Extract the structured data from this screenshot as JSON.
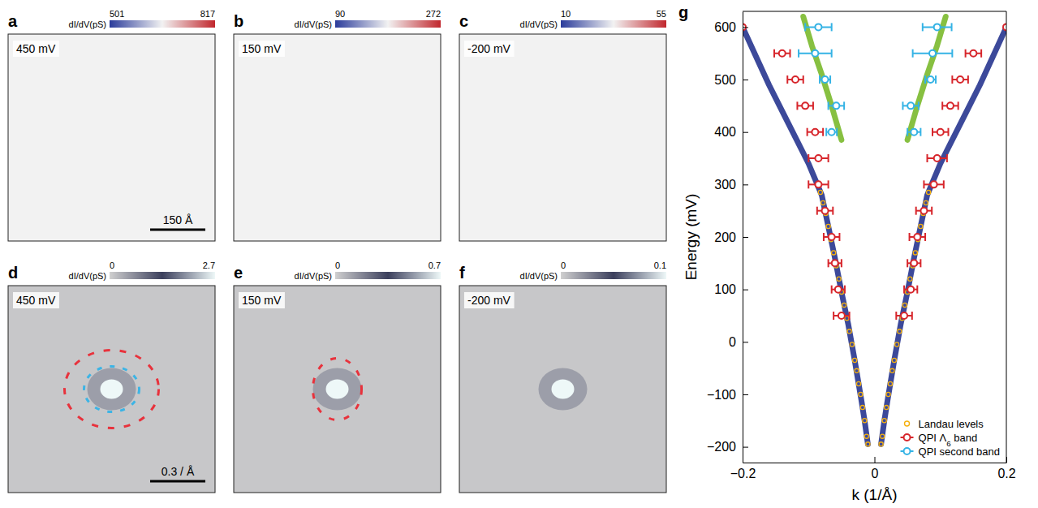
{
  "chart_data": [
    {
      "type": "image",
      "panel": "a",
      "label": "450 mV",
      "colorbar_label": "dI/dV(pS)",
      "colorbar_range": [
        501,
        817
      ],
      "colorbar_ticks": [
        501,
        817
      ],
      "colors": [
        "#2b3c9b",
        "#f2f2f2",
        "#c1272d"
      ],
      "scale_bar": "150 Å"
    },
    {
      "type": "image",
      "panel": "b",
      "label": "150 mV",
      "colorbar_label": "dI/dV(pS)",
      "colorbar_range": [
        90,
        272
      ],
      "colorbar_ticks": [
        90,
        272
      ],
      "colors": [
        "#2b3c9b",
        "#f2f2f2",
        "#c1272d"
      ]
    },
    {
      "type": "image",
      "panel": "c",
      "label": "-200 mV",
      "colorbar_label": "dI/dV(pS)",
      "colorbar_range": [
        10,
        55
      ],
      "colorbar_ticks": [
        10,
        55
      ],
      "colors": [
        "#2b3c9b",
        "#f2f2f2",
        "#c1272d"
      ]
    },
    {
      "type": "image",
      "panel": "d",
      "label": "450 mV",
      "colorbar_label": "dI/dV(pS)",
      "colorbar_range": [
        0,
        2.7
      ],
      "colorbar_ticks": [
        0,
        2.7
      ],
      "colors": [
        "#d0d0d0",
        "#3b3f5c",
        "#eef8f8"
      ],
      "scale_bar": "0.3 / Å"
    },
    {
      "type": "image",
      "panel": "e",
      "label": "150 mV",
      "colorbar_label": "dI/dV(pS)",
      "colorbar_range": [
        0,
        0.7
      ],
      "colorbar_ticks": [
        0,
        0.7
      ],
      "colors": [
        "#d0d0d0",
        "#3b3f5c",
        "#eef8f8"
      ]
    },
    {
      "type": "image",
      "panel": "f",
      "label": "-200 mV",
      "colorbar_label": "dI/dV(pS)",
      "colorbar_range": [
        0,
        0.1
      ],
      "colorbar_ticks": [
        0,
        0.1
      ],
      "colors": [
        "#d0d0d0",
        "#3b3f5c",
        "#eef8f8"
      ]
    },
    {
      "type": "line",
      "panel": "g",
      "x_label": "k (1/Å)",
      "y_label": "Energy (mV)",
      "xlim": [
        -0.2,
        0.2
      ],
      "ylim": [
        -230,
        630
      ],
      "xticks": [
        {
          "value": -0.2,
          "label": "−0.2"
        },
        0,
        0.2
      ],
      "yticks": [
        {
          "value": -200,
          "label": "−200"
        },
        {
          "value": -100,
          "label": "−100"
        },
        0,
        100,
        200,
        300,
        400,
        500,
        600
      ],
      "legend": "lower right",
      "series": [
        {
          "type": "line",
          "color": "#27358f",
          "line_style": "solid",
          "x": [
            -0.2,
            -0.18,
            -0.16,
            -0.14,
            -0.12,
            -0.1,
            -0.09,
            -0.08,
            -0.07,
            -0.06,
            -0.05,
            -0.04,
            -0.03,
            -0.02,
            -0.015,
            -0.01,
            null,
            0.01,
            0.015,
            0.02,
            0.03,
            0.04,
            0.05,
            0.06,
            0.07,
            0.08,
            0.09,
            0.1,
            0.12,
            0.14,
            0.16,
            0.18,
            0.2
          ],
          "values": [
            600,
            545,
            490,
            440,
            390,
            340,
            310,
            280,
            220,
            160,
            95,
            35,
            -35,
            -110,
            -150,
            -195,
            null,
            -195,
            -150,
            -110,
            -35,
            35,
            95,
            160,
            220,
            280,
            310,
            340,
            390,
            440,
            490,
            545,
            600
          ]
        },
        {
          "type": "line",
          "color": "#7ab92c",
          "line_style": "solid",
          "x": [
            -0.05,
            -0.065,
            -0.08,
            -0.095,
            -0.108,
            null,
            0.05,
            0.065,
            0.08,
            0.095,
            0.108
          ],
          "values": [
            385,
            450,
            510,
            565,
            620,
            null,
            385,
            450,
            510,
            565,
            620
          ]
        },
        {
          "type": "scatter",
          "name": "Landau levels",
          "color": "#f5b10f",
          "marker": "circle",
          "x": [
            -0.01,
            -0.012,
            -0.015,
            -0.018,
            -0.021,
            -0.024,
            -0.027,
            -0.03,
            -0.034,
            -0.038,
            -0.042,
            -0.046,
            -0.05,
            -0.054,
            -0.058,
            -0.062,
            -0.066,
            -0.07,
            -0.074,
            -0.078,
            -0.082,
            0.01,
            0.012,
            0.015,
            0.018,
            0.021,
            0.024,
            0.027,
            0.03,
            0.034,
            0.038,
            0.042,
            0.046,
            0.05,
            0.054,
            0.058,
            0.062,
            0.066,
            0.07,
            0.074,
            0.078,
            0.082
          ],
          "values": [
            -195,
            -180,
            -150,
            -125,
            -100,
            -80,
            -55,
            -35,
            -5,
            20,
            45,
            70,
            95,
            120,
            145,
            170,
            195,
            220,
            245,
            265,
            285,
            -195,
            -180,
            -150,
            -125,
            -100,
            -80,
            -55,
            -35,
            -5,
            20,
            45,
            70,
            95,
            120,
            145,
            170,
            195,
            220,
            245,
            265,
            285
          ]
        },
        {
          "type": "scatter",
          "name": "QPI Λ6 band",
          "color": "#d7262c",
          "marker": "circle",
          "x": [
            -0.05,
            -0.055,
            -0.06,
            -0.065,
            -0.075,
            -0.085,
            -0.085,
            -0.09,
            -0.105,
            -0.12,
            -0.14,
            -0.2,
            0.045,
            0.055,
            0.06,
            0.065,
            0.075,
            0.09,
            0.095,
            0.1,
            0.115,
            0.13,
            0.15,
            0.2
          ],
          "values": [
            50,
            100,
            150,
            200,
            250,
            300,
            350,
            400,
            450,
            500,
            550,
            600,
            50,
            100,
            150,
            200,
            250,
            300,
            350,
            400,
            450,
            500,
            550,
            600
          ],
          "x_errors": [
            0.012,
            0.01,
            0.01,
            0.012,
            0.012,
            0.015,
            0.015,
            0.012,
            0.012,
            0.012,
            0.012,
            null,
            0.012,
            0.01,
            0.01,
            0.012,
            0.012,
            0.015,
            0.015,
            0.012,
            0.012,
            0.012,
            0.012,
            null
          ]
        },
        {
          "type": "scatter",
          "name": "QPI second band",
          "color": "#35b3e5",
          "marker": "circle",
          "x": [
            -0.065,
            -0.058,
            -0.075,
            -0.09,
            -0.085,
            0.06,
            0.055,
            0.085,
            0.088,
            0.095
          ],
          "values": [
            400,
            450,
            500,
            550,
            600,
            400,
            450,
            500,
            550,
            600
          ],
          "x_errors": [
            0.008,
            0.012,
            0.008,
            0.025,
            0.02,
            0.01,
            0.012,
            0.008,
            0.03,
            0.022
          ]
        }
      ]
    }
  ]
}
